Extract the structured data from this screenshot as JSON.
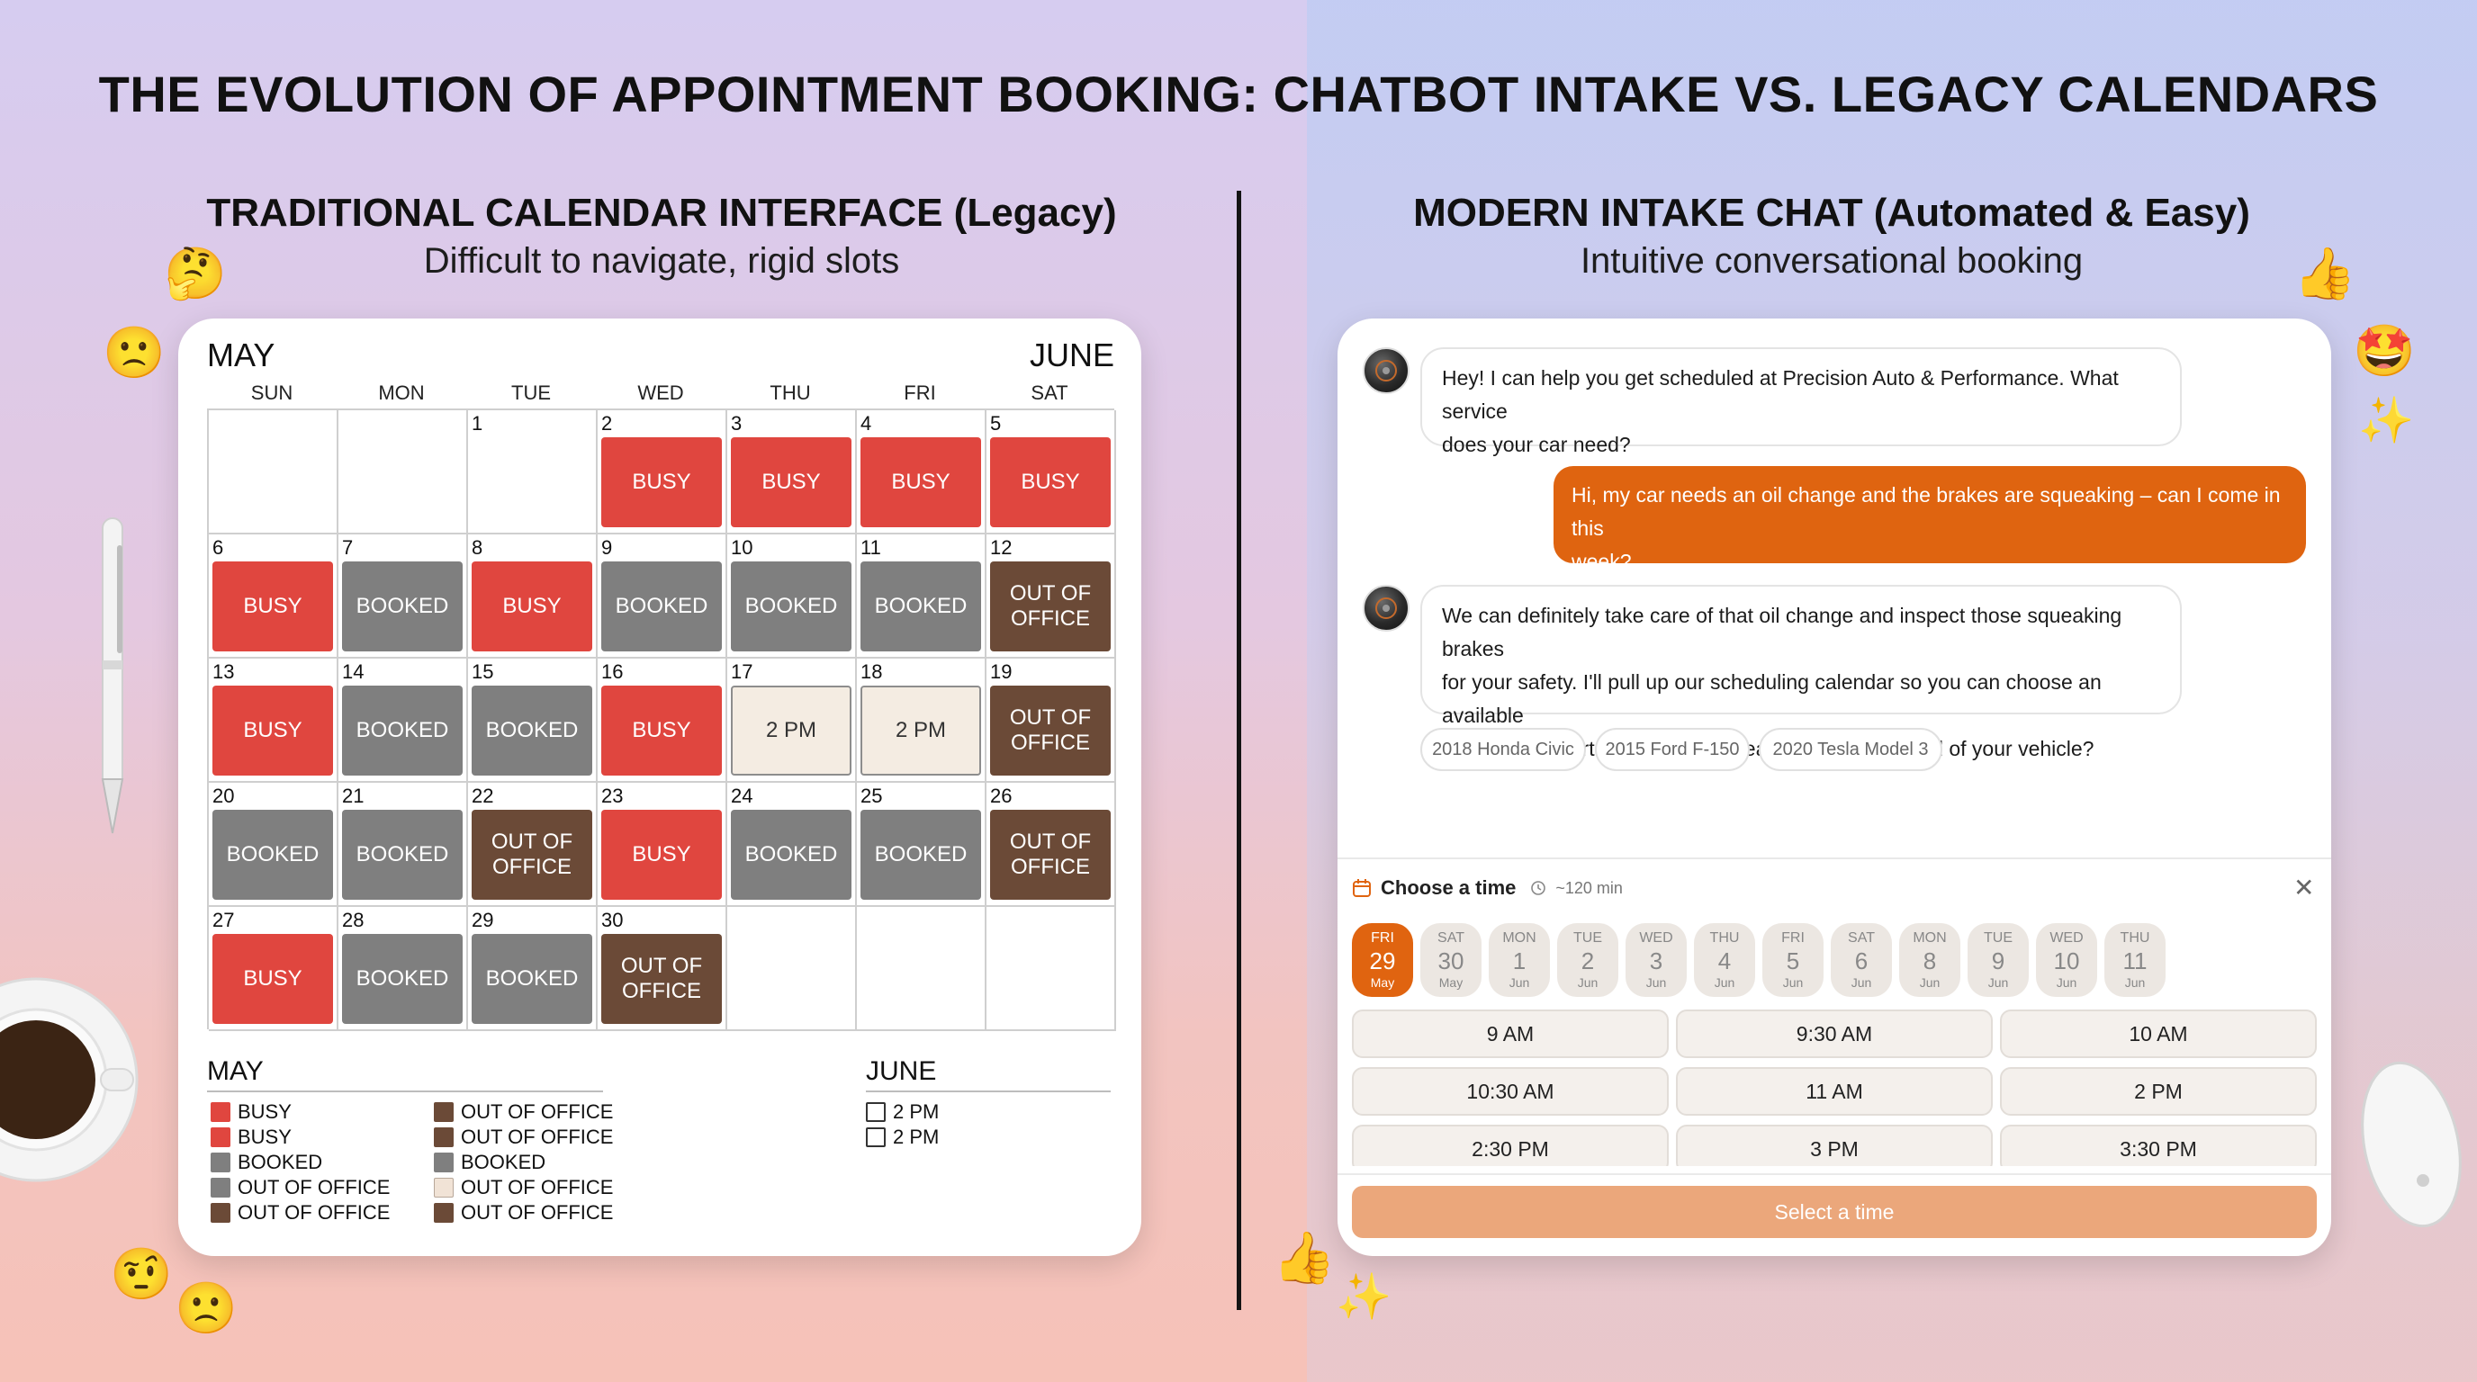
{
  "title": "THE EVOLUTION OF APPOINTMENT BOOKING: CHATBOT INTAKE VS. LEGACY CALENDARS",
  "left": {
    "heading": "TRADITIONAL CALENDAR INTERFACE (Legacy)",
    "subheading": "Difficult to navigate, rigid slots",
    "month_left": "MAY",
    "month_right": "JUNE",
    "weekdays": [
      "SUN",
      "MON",
      "TUE",
      "WED",
      "THU",
      "FRI",
      "SAT"
    ],
    "cells": [
      {
        "day": "",
        "label": "",
        "status": ""
      },
      {
        "day": "",
        "label": "",
        "status": ""
      },
      {
        "day": "1",
        "label": "",
        "status": ""
      },
      {
        "day": "2",
        "label": "BUSY",
        "status": "busy"
      },
      {
        "day": "3",
        "label": "BUSY",
        "status": "busy"
      },
      {
        "day": "4",
        "label": "BUSY",
        "status": "busy"
      },
      {
        "day": "5",
        "label": "BUSY",
        "status": "busy"
      },
      {
        "day": "6",
        "label": "BUSY",
        "status": "busy"
      },
      {
        "day": "7",
        "label": "BOOKED",
        "status": "booked"
      },
      {
        "day": "8",
        "label": "BUSY",
        "status": "busy"
      },
      {
        "day": "9",
        "label": "BOOKED",
        "status": "booked"
      },
      {
        "day": "10",
        "label": "BOOKED",
        "status": "booked"
      },
      {
        "day": "11",
        "label": "BOOKED",
        "status": "booked"
      },
      {
        "day": "12",
        "label": "OUT OF\nOFFICE",
        "status": "ooo"
      },
      {
        "day": "13",
        "label": "BUSY",
        "status": "busy"
      },
      {
        "day": "14",
        "label": "BOOKED",
        "status": "booked"
      },
      {
        "day": "15",
        "label": "BOOKED",
        "status": "booked"
      },
      {
        "day": "16",
        "label": "BUSY",
        "status": "busy"
      },
      {
        "day": "17",
        "label": "2 PM",
        "status": "open"
      },
      {
        "day": "18",
        "label": "2 PM",
        "status": "open"
      },
      {
        "day": "19",
        "label": "OUT OF\nOFFICE",
        "status": "ooo"
      },
      {
        "day": "20",
        "label": "BOOKED",
        "status": "booked"
      },
      {
        "day": "21",
        "label": "BOOKED",
        "status": "booked"
      },
      {
        "day": "22",
        "label": "OUT OF\nOFFICE",
        "status": "ooo"
      },
      {
        "day": "23",
        "label": "BUSY",
        "status": "busy"
      },
      {
        "day": "24",
        "label": "BOOKED",
        "status": "booked"
      },
      {
        "day": "25",
        "label": "BOOKED",
        "status": "booked"
      },
      {
        "day": "26",
        "label": "OUT OF\nOFFICE",
        "status": "ooo"
      },
      {
        "day": "27",
        "label": "BUSY",
        "status": "busy"
      },
      {
        "day": "28",
        "label": "BOOKED",
        "status": "booked"
      },
      {
        "day": "29",
        "label": "BOOKED",
        "status": "booked"
      },
      {
        "day": "30",
        "label": "OUT OF\nOFFICE",
        "status": "ooo"
      },
      {
        "day": "",
        "label": "",
        "status": ""
      },
      {
        "day": "",
        "label": "",
        "status": ""
      },
      {
        "day": "",
        "label": "",
        "status": ""
      }
    ],
    "legend_may_title": "MAY",
    "legend_may_col1": [
      {
        "label": "BUSY",
        "status": "busy"
      },
      {
        "label": "BUSY",
        "status": "busy"
      },
      {
        "label": "BOOKED",
        "status": "booked"
      },
      {
        "label": "OUT OF OFFICE",
        "status": "booked"
      },
      {
        "label": "OUT OF OFFICE",
        "status": "ooo"
      }
    ],
    "legend_may_col2": [
      {
        "label": "OUT OF OFFICE",
        "status": "ooo"
      },
      {
        "label": "OUT OF OFFICE",
        "status": "ooo"
      },
      {
        "label": "BOOKED",
        "status": "booked"
      },
      {
        "label": "OUT OF OFFICE",
        "status": "open"
      },
      {
        "label": "OUT OF OFFICE",
        "status": "ooo"
      }
    ],
    "legend_june_title": "JUNE",
    "legend_june": [
      {
        "label": "2 PM",
        "status": "box"
      },
      {
        "label": "2 PM",
        "status": "box"
      }
    ]
  },
  "right": {
    "heading": "MODERN INTAKE CHAT (Automated & Easy)",
    "subheading": "Intuitive conversational booking",
    "messages": {
      "bot1_line1": "Hey! I can help you get scheduled at Precision Auto & Performance. What service",
      "bot1_line2": "does your car need?",
      "user1_line1": "Hi, my car needs an oil change and the brakes are squeaking – can I come in this",
      "user1_line2": "week?",
      "bot2_line1": "We can definitely take care of that oil change and inspect those squeaking brakes",
      "bot2_line2": "for your safety. I'll pull up our scheduling calendar so you can choose an available",
      "bot2_line3": "time. To get started, what is the year, make, and model of your vehicle?"
    },
    "chips": [
      "2018 Honda Civic",
      "2015 Ford F-150",
      "2020 Tesla Model 3"
    ],
    "picker": {
      "title": "Choose a time",
      "duration": "~120 min",
      "close_icon": "close-icon",
      "days": [
        {
          "dow": "FRI",
          "num": "29",
          "mon": "May",
          "selected": true
        },
        {
          "dow": "SAT",
          "num": "30",
          "mon": "May",
          "selected": false
        },
        {
          "dow": "MON",
          "num": "1",
          "mon": "Jun",
          "selected": false
        },
        {
          "dow": "TUE",
          "num": "2",
          "mon": "Jun",
          "selected": false
        },
        {
          "dow": "WED",
          "num": "3",
          "mon": "Jun",
          "selected": false
        },
        {
          "dow": "THU",
          "num": "4",
          "mon": "Jun",
          "selected": false
        },
        {
          "dow": "FRI",
          "num": "5",
          "mon": "Jun",
          "selected": false
        },
        {
          "dow": "SAT",
          "num": "6",
          "mon": "Jun",
          "selected": false
        },
        {
          "dow": "MON",
          "num": "8",
          "mon": "Jun",
          "selected": false
        },
        {
          "dow": "TUE",
          "num": "9",
          "mon": "Jun",
          "selected": false
        },
        {
          "dow": "WED",
          "num": "10",
          "mon": "Jun",
          "selected": false
        },
        {
          "dow": "THU",
          "num": "11",
          "mon": "Jun",
          "selected": false
        }
      ],
      "times": [
        "9 AM",
        "9:30 AM",
        "10 AM",
        "10:30 AM",
        "11 AM",
        "2 PM",
        "2:30 PM",
        "3 PM",
        "3:30 PM"
      ],
      "select_button": "Select a time"
    }
  },
  "colors": {
    "busy": "#e0463f",
    "booked": "#7f7f7f",
    "out_of_office": "#6b4a37",
    "accent_orange": "#df6410",
    "select_button": "#eba77b"
  },
  "decor_icons": [
    "thinking-emoji-icon",
    "frowning-emoji-icon",
    "pen-icon",
    "coffee-cup-icon",
    "thumbs-up-icon",
    "star-struck-emoji-icon",
    "sparkles-icon",
    "mouse-icon"
  ]
}
